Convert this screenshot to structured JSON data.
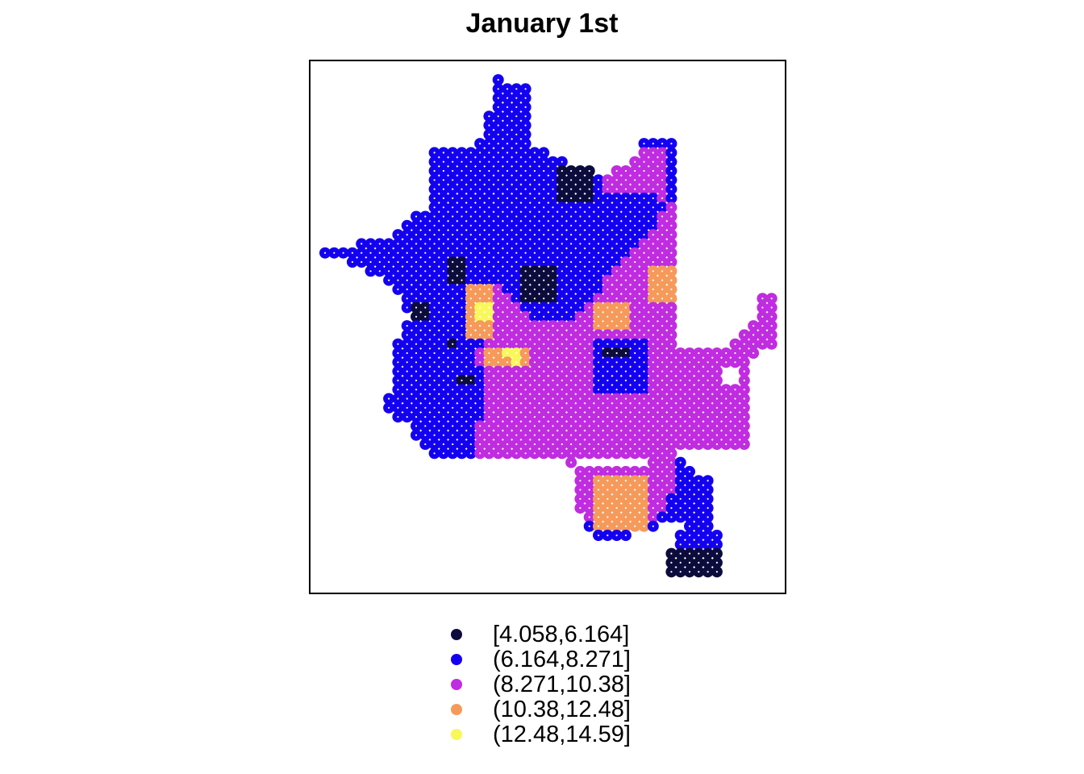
{
  "title": "January 1st",
  "chart_data": {
    "type": "scatter",
    "title": "January 1st",
    "xlabel": "",
    "ylabel": "",
    "grid": false,
    "axes_shown": false,
    "legend_position": "bottom",
    "dot_interior_color": "#ffffff",
    "classes": [
      {
        "label": "[4.058,6.164]",
        "color": "#0c0c3c"
      },
      {
        "label": "(6.164,8.271]",
        "color": "#1400f0"
      },
      {
        "label": "(8.271,10.38]",
        "color": "#c02ce0"
      },
      {
        "label": "(10.38,12.48]",
        "color": "#f59a5a"
      },
      {
        "label": "(12.48,14.59]",
        "color": "#f8f85a"
      }
    ]
  }
}
